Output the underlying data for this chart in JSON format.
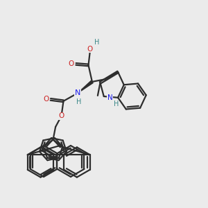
{
  "background_color": "#ebebeb",
  "bond_color": "#2d2d2d",
  "oxygen_color": "#cc2222",
  "nitrogen_color": "#1a1aee",
  "teal_color": "#3a8888",
  "line_width": 1.6,
  "font_size": 7.5,
  "fig_w": 3.0,
  "fig_h": 3.0,
  "dpi": 100,
  "xlim": [
    0,
    10
  ],
  "ylim": [
    0,
    10
  ]
}
